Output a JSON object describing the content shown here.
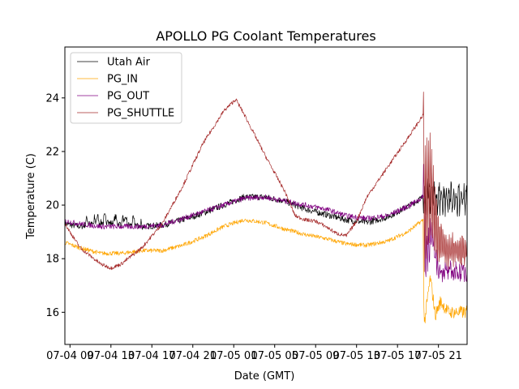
{
  "chart_data": {
    "type": "line",
    "title": "APOLLO PG Coolant Temperatures",
    "xlabel": "Date (GMT)",
    "ylabel": "Temperature (C)",
    "xlim_hours_from_0704_00": [
      8.5,
      47.8
    ],
    "ylim": [
      14.8,
      25.9
    ],
    "grid": false,
    "legend_position": "top-left",
    "x_ticks": [
      {
        "hour": 9,
        "label": "07-04 09"
      },
      {
        "hour": 13,
        "label": "07-04 13"
      },
      {
        "hour": 17,
        "label": "07-04 17"
      },
      {
        "hour": 21,
        "label": "07-04 21"
      },
      {
        "hour": 25,
        "label": "07-05 01"
      },
      {
        "hour": 29,
        "label": "07-05 05"
      },
      {
        "hour": 33,
        "label": "07-05 09"
      },
      {
        "hour": 37,
        "label": "07-05 13"
      },
      {
        "hour": 41,
        "label": "07-05 17"
      },
      {
        "hour": 45,
        "label": "07-05 21"
      }
    ],
    "y_ticks": [
      16,
      18,
      20,
      22,
      24
    ],
    "series": [
      {
        "name": "Utah Air",
        "color": "#000000",
        "noise": 0.12,
        "x": [
          8.5,
          10,
          12,
          14,
          16,
          18,
          20,
          22,
          24,
          26,
          28,
          30,
          32,
          34,
          36,
          38,
          40,
          42,
          43.5,
          44,
          46,
          47.8
        ],
        "y": [
          19.3,
          19.2,
          19.35,
          19.3,
          19.2,
          19.25,
          19.45,
          19.7,
          20.0,
          20.3,
          20.3,
          20.15,
          19.85,
          19.65,
          19.45,
          19.35,
          19.55,
          19.95,
          20.3,
          20.3,
          20.2,
          20.2
        ]
      },
      {
        "name": "PG_IN",
        "color": "#FFA500",
        "noise": 0.08,
        "x": [
          8.5,
          10,
          12,
          14,
          16,
          18,
          20,
          22,
          24,
          26,
          28,
          30,
          32,
          34,
          36,
          38,
          40,
          42,
          43.5,
          43.6,
          44.2,
          44.7,
          45.2,
          46,
          47.8
        ],
        "y": [
          18.6,
          18.4,
          18.2,
          18.2,
          18.3,
          18.3,
          18.5,
          18.8,
          19.2,
          19.45,
          19.35,
          19.1,
          18.9,
          18.75,
          18.55,
          18.5,
          18.65,
          19.0,
          19.45,
          15.5,
          17.3,
          15.9,
          16.4,
          16.0,
          16.0
        ]
      },
      {
        "name": "PG_OUT",
        "color": "#800080",
        "noise": 0.1,
        "x": [
          8.5,
          10,
          12,
          14,
          16,
          18,
          20,
          22,
          24,
          26,
          28,
          30,
          32,
          34,
          36,
          38,
          40,
          42,
          43.5,
          43.55,
          43.7,
          44.3,
          45,
          46,
          47.8
        ],
        "y": [
          19.4,
          19.3,
          19.2,
          19.2,
          19.2,
          19.25,
          19.5,
          19.75,
          20.0,
          20.25,
          20.3,
          20.15,
          20.0,
          19.85,
          19.6,
          19.5,
          19.6,
          19.95,
          20.3,
          22.4,
          18.0,
          18.9,
          17.6,
          17.5,
          17.5
        ]
      },
      {
        "name": "PG_SHUTTLE",
        "color": "#A52A2A",
        "noise": 0.07,
        "x": [
          8.5,
          10,
          12,
          13,
          14,
          16,
          18,
          20,
          22,
          24,
          25.2,
          26,
          28,
          30,
          31,
          32,
          33,
          34,
          35,
          36,
          37,
          38,
          40,
          42,
          43.5,
          43.6,
          44.2,
          45,
          46,
          47.8
        ],
        "y": [
          19.3,
          18.4,
          17.8,
          17.65,
          17.8,
          18.4,
          19.3,
          20.7,
          22.3,
          23.5,
          23.95,
          23.4,
          21.9,
          20.5,
          19.6,
          19.45,
          19.4,
          19.2,
          18.95,
          18.85,
          19.4,
          20.3,
          21.4,
          22.5,
          23.35,
          19.8,
          20.8,
          18.8,
          18.3,
          18.3
        ]
      }
    ]
  }
}
